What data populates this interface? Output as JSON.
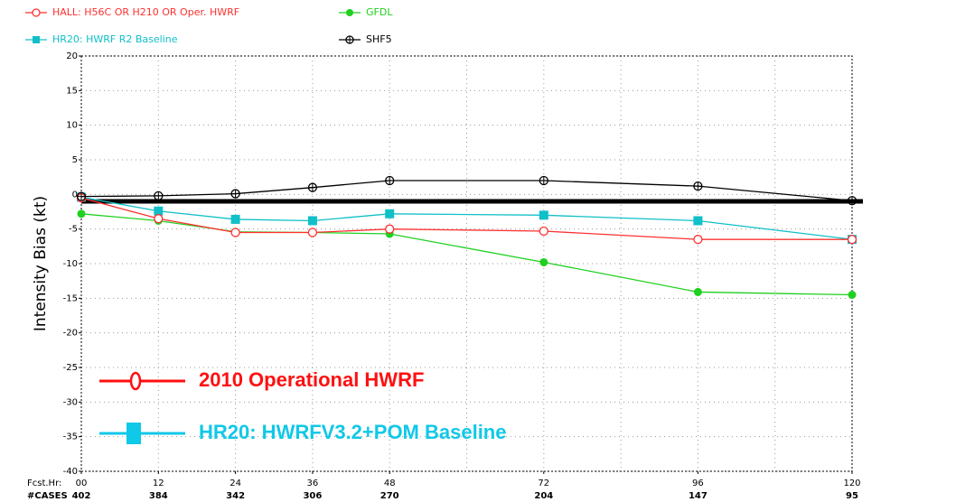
{
  "chart_data": {
    "type": "line",
    "ylabel": "Intensity Bias (kt)",
    "x": [
      0,
      12,
      24,
      36,
      48,
      72,
      96,
      120
    ],
    "xlim": [
      0,
      120
    ],
    "xticks": [
      {
        "value": 0,
        "label": "00"
      },
      12,
      24,
      36,
      48,
      72,
      96,
      120
    ],
    "xgrid": [
      12,
      24,
      36,
      48,
      60,
      72,
      84,
      96,
      108
    ],
    "ylim": [
      -40,
      20
    ],
    "yticks": [
      20,
      15,
      10,
      5,
      0,
      -5,
      -10,
      -15,
      -20,
      -25,
      -30,
      -35,
      -40
    ],
    "grid": true,
    "reference_line": -1,
    "xrow_label": "Fcst.Hr:",
    "cases_label": "#CASES",
    "cases": [
      402,
      384,
      342,
      306,
      270,
      204,
      147,
      95
    ],
    "series": [
      {
        "name": "HALL: H56C OR H210 OR Oper. HWRF",
        "color": "#ff3030",
        "marker": "open-circle",
        "values": [
          -0.5,
          -3.5,
          -5.5,
          -5.5,
          -5.0,
          -5.3,
          -6.5,
          -6.5
        ]
      },
      {
        "name": "GFDL",
        "color": "#20d020",
        "marker": "filled-circle",
        "values": [
          -2.8,
          -3.8,
          -5.4,
          -5.5,
          -5.7,
          -9.8,
          -14.1,
          -14.5
        ]
      },
      {
        "name": "HR20: HWRF R2 Baseline",
        "color": "#10c0c8",
        "marker": "square",
        "values": [
          -0.4,
          -2.4,
          -3.6,
          -3.8,
          -2.8,
          -3.0,
          -3.8,
          -6.5
        ]
      },
      {
        "name": "SHF5",
        "color": "#000000",
        "marker": "cross-circle",
        "values": [
          -0.3,
          -0.2,
          0.1,
          1.0,
          2.0,
          2.0,
          1.2,
          -0.9
        ]
      }
    ],
    "annotations": [
      {
        "text": "2010 Operational HWRF",
        "color": "#ff1010",
        "marker": "open-circle"
      },
      {
        "text": "HR20: HWRFV3.2+POM Baseline",
        "color": "#10c8e8",
        "marker": "square"
      }
    ]
  }
}
